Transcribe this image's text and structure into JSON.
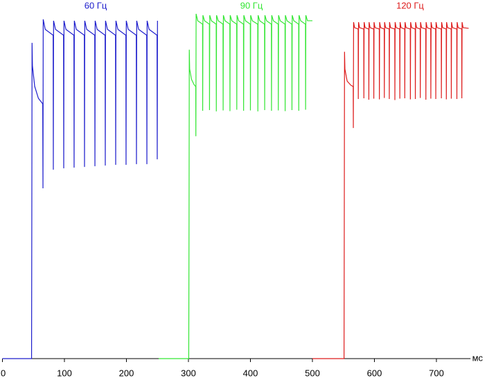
{
  "chart_data": {
    "type": "line",
    "x_label": "мс",
    "xlim": [
      0,
      755
    ],
    "xticks": [
      0,
      100,
      200,
      300,
      400,
      500,
      600,
      700
    ],
    "ylim": [
      0,
      100
    ],
    "series": [
      {
        "name": "60 Гц",
        "color": "#1c1ccc",
        "x": [
          0,
          47,
          47.4,
          47.8,
          48.4,
          52,
          58,
          65,
          65.4,
          65.8,
          69,
          81.8,
          82.1,
          82.5,
          85.6,
          98.6,
          98.9,
          99.3,
          102.4,
          115.3,
          115.6,
          116,
          119.1,
          132.1,
          132.4,
          132.8,
          135.9,
          148.9,
          149.2,
          149.6,
          152.7,
          165.6,
          165.9,
          166.3,
          169.4,
          182.4,
          182.7,
          183.1,
          186.2,
          199.1,
          199.4,
          199.8,
          202.9,
          215.9,
          216.2,
          216.6,
          219.7,
          232.7,
          233,
          233.4,
          236.5,
          249.4,
          249.7,
          250.1
        ],
        "values": [
          0,
          0,
          39.8,
          91.6,
          84.9,
          79,
          75.5,
          73.9,
          49.4,
          98.4,
          95.5,
          93.8,
          54.8,
          98,
          95.5,
          93.8,
          55.2,
          98,
          95.5,
          93.8,
          55.4,
          98,
          95.5,
          93.8,
          55.6,
          98,
          95.5,
          93.8,
          55.8,
          98,
          95.5,
          93.8,
          56,
          98,
          95.5,
          93.8,
          56.2,
          98,
          95.5,
          93.8,
          56.2,
          98,
          95.5,
          93.8,
          56.4,
          98,
          95.5,
          93.8,
          56.4,
          98,
          95.5,
          93.8,
          57.8,
          98
        ]
      },
      {
        "name": "90 Гц",
        "color": "#33e633",
        "x": [
          252,
          300.5,
          301,
          301.4,
          302,
          305,
          309,
          311.8,
          312,
          312.4,
          315,
          322.8,
          323,
          323.4,
          326,
          333.8,
          334,
          334.4,
          337,
          344.8,
          345,
          345.4,
          348,
          355.8,
          356,
          356.4,
          359,
          366.8,
          367,
          367.4,
          370,
          377.8,
          378,
          378.4,
          381,
          388.8,
          389,
          389.4,
          392,
          399.8,
          400,
          400.4,
          403,
          411.8,
          412,
          412.4,
          415,
          422.8,
          423,
          423.4,
          426,
          433.8,
          434,
          434.4,
          437,
          444.8,
          445,
          445.4,
          448,
          455.8,
          456,
          456.4,
          459,
          466.8,
          467,
          467.4,
          470,
          477.8,
          478,
          478.4,
          481,
          488.8,
          489,
          489.4,
          492,
          500
        ],
        "values": [
          0,
          0,
          40,
          89.6,
          84,
          81,
          79.5,
          78.9,
          64.5,
          100,
          98,
          97,
          71.9,
          99.6,
          98,
          97,
          72.1,
          99.6,
          98,
          97,
          71.7,
          99.6,
          98,
          97,
          72,
          99.6,
          98,
          97,
          71.8,
          99.6,
          98,
          97,
          72.2,
          99.6,
          98,
          97,
          71.9,
          99.6,
          98,
          97,
          72,
          99.6,
          98,
          97,
          71.7,
          99.6,
          98,
          97,
          72.1,
          99.6,
          98,
          97,
          71.9,
          99.6,
          98,
          97,
          72,
          99.6,
          98,
          97,
          71.8,
          99.6,
          98,
          97,
          72.1,
          99.6,
          98,
          97,
          71.9,
          99.6,
          98,
          97,
          72.2,
          99.6,
          98,
          98
        ]
      },
      {
        "name": "120 Гц",
        "color": "#dd1a1a",
        "x": [
          500,
          551,
          551.4,
          551.8,
          552.4,
          556,
          562,
          565.8,
          566,
          566.4,
          568,
          573.8,
          574,
          574.4,
          576,
          582.8,
          583,
          583.4,
          585,
          590.8,
          591,
          591.4,
          593,
          598.8,
          599,
          599.4,
          601,
          607.8,
          608,
          608.4,
          610,
          615.8,
          616,
          616.4,
          618,
          623.8,
          624,
          624.4,
          626,
          632.8,
          633,
          633.4,
          635,
          640.8,
          641,
          641.4,
          643,
          648.8,
          649,
          649.4,
          651,
          657.8,
          658,
          658.4,
          660,
          665.8,
          666,
          666.4,
          668,
          673.8,
          674,
          674.4,
          676,
          682.8,
          683,
          683.4,
          685,
          690.8,
          691,
          691.4,
          693,
          698.8,
          699,
          699.4,
          701,
          707.8,
          708,
          708.4,
          710,
          715.8,
          716,
          716.4,
          718,
          723.8,
          724,
          724.4,
          726,
          732.8,
          733,
          733.4,
          735,
          740.8,
          741,
          741.4,
          743,
          752
        ],
        "values": [
          0,
          0,
          40,
          89,
          84,
          80.5,
          79.3,
          78.9,
          66.9,
          97.6,
          96,
          95.6,
          75.3,
          97.6,
          96,
          95.6,
          75.5,
          97.6,
          96,
          95.6,
          75.1,
          97.6,
          96,
          95.6,
          75.4,
          97.6,
          96,
          95.6,
          75.2,
          97.6,
          96,
          95.6,
          75.6,
          97.6,
          96,
          95.6,
          75.3,
          97.6,
          96,
          95.6,
          75,
          97.6,
          96,
          95.6,
          75.4,
          97.6,
          96,
          95.6,
          75.5,
          97.6,
          96,
          95.6,
          75.2,
          97.6,
          96,
          95.6,
          75.3,
          97.6,
          96,
          95.6,
          75.6,
          97.6,
          96,
          95.6,
          75.1,
          97.6,
          96,
          95.6,
          75.4,
          97.6,
          96,
          95.6,
          75.3,
          97.6,
          96,
          95.6,
          75.5,
          97.6,
          96,
          95.6,
          75.2,
          97.6,
          96,
          95.6,
          75.4,
          97.6,
          96,
          95.6,
          75.3,
          97.6,
          96,
          95.6,
          75.5,
          97.6,
          96,
          95.8
        ]
      }
    ]
  }
}
